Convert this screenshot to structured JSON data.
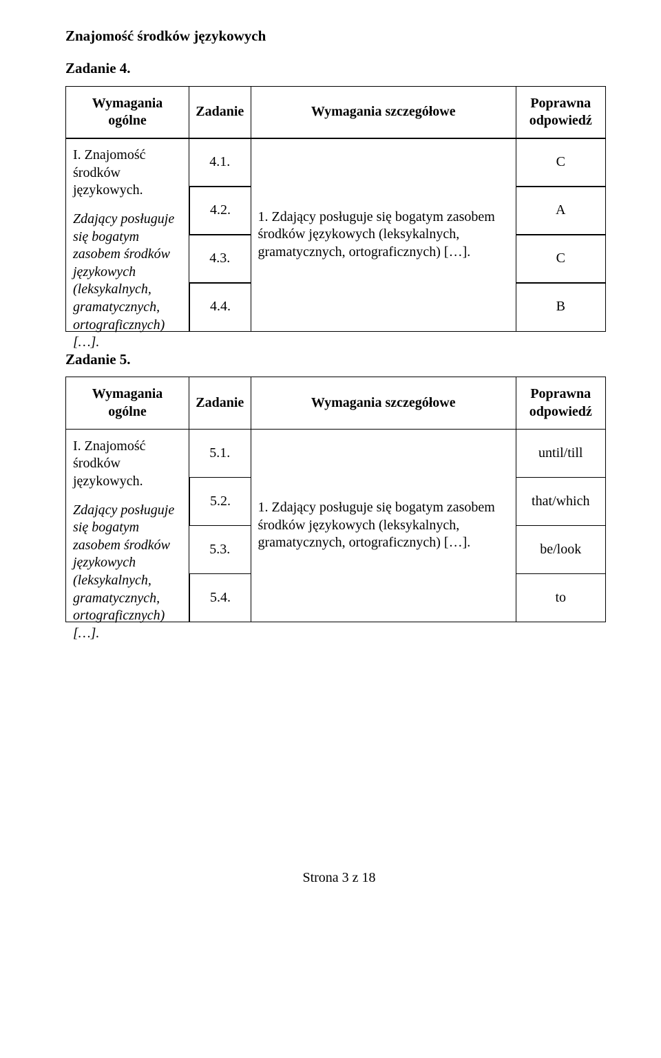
{
  "page": {
    "background_color": "#ffffff",
    "text_color": "#000000",
    "border_color": "#000000",
    "font_family": "Times New Roman",
    "title_fontsize_pt": 16,
    "body_fontsize_pt": 15,
    "footer": "Strona 3 z 18"
  },
  "section_title": "Znajomość środków językowych",
  "task4": {
    "title": "Zadanie 4.",
    "headers": {
      "col1": "Wymagania ogólne",
      "col2": "Zadanie",
      "col3": "Wymagania szczegółowe",
      "col4": "Poprawna odpowiedź"
    },
    "col1_top": "I. Znajomość środków językowych.",
    "col1_bottom": "Zdający posługuje się bogatym zasobem środków językowych (leksykalnych, gramatycznych, ortograficznych) […].",
    "col3_text": "1. Zdający posługuje się bogatym zasobem środków językowych (leksykalnych, gramatycznych, ortograficznych) […].",
    "rows": [
      {
        "num": "4.1.",
        "ans": "C"
      },
      {
        "num": "4.2.",
        "ans": "A"
      },
      {
        "num": "4.3.",
        "ans": "C"
      },
      {
        "num": "4.4.",
        "ans": "B"
      }
    ]
  },
  "task5": {
    "title": "Zadanie 5.",
    "headers": {
      "col1": "Wymagania ogólne",
      "col2": "Zadanie",
      "col3": "Wymagania szczegółowe",
      "col4": "Poprawna odpowiedź"
    },
    "col1_top": "I. Znajomość środków językowych.",
    "col1_bottom": "Zdający posługuje się bogatym zasobem środków językowych (leksykalnych, gramatycznych, ortograficznych) […].",
    "col3_text": "1. Zdający posługuje się bogatym zasobem środków językowych (leksykalnych, gramatycznych, ortograficznych) […].",
    "rows": [
      {
        "num": "5.1.",
        "ans": "until/till"
      },
      {
        "num": "5.2.",
        "ans": "that/which"
      },
      {
        "num": "5.3.",
        "ans": "be/look"
      },
      {
        "num": "5.4.",
        "ans": "to"
      }
    ]
  }
}
